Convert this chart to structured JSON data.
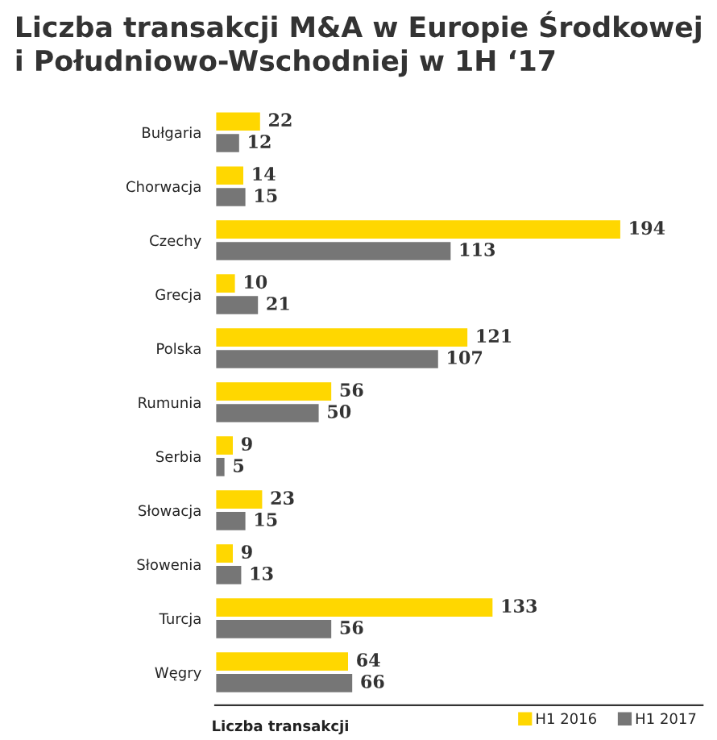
{
  "chart_data": {
    "type": "bar",
    "orientation": "horizontal",
    "title": "Liczba transakcji M&A w Europie Środkowej\ni Południowo-Wschodniej w 1H ‘17",
    "xlabel": "Liczba transakcji",
    "categories": [
      "Bułgaria",
      "Chorwacja",
      "Czechy",
      "Grecja",
      "Polska",
      "Rumunia",
      "Serbia",
      "Słowacja",
      "Słowenia",
      "Turcja",
      "Węgry"
    ],
    "series": [
      {
        "name": "H1 2016",
        "color": "#ffd700",
        "values": [
          22,
          14,
          194,
          10,
          121,
          56,
          9,
          23,
          9,
          133,
          64
        ]
      },
      {
        "name": "H1 2017",
        "color": "#767676",
        "values": [
          12,
          15,
          113,
          21,
          107,
          50,
          5,
          15,
          13,
          56,
          66
        ]
      }
    ],
    "data_labels": true,
    "legend": "bottom right",
    "grid": false,
    "tick_labels": "y"
  }
}
